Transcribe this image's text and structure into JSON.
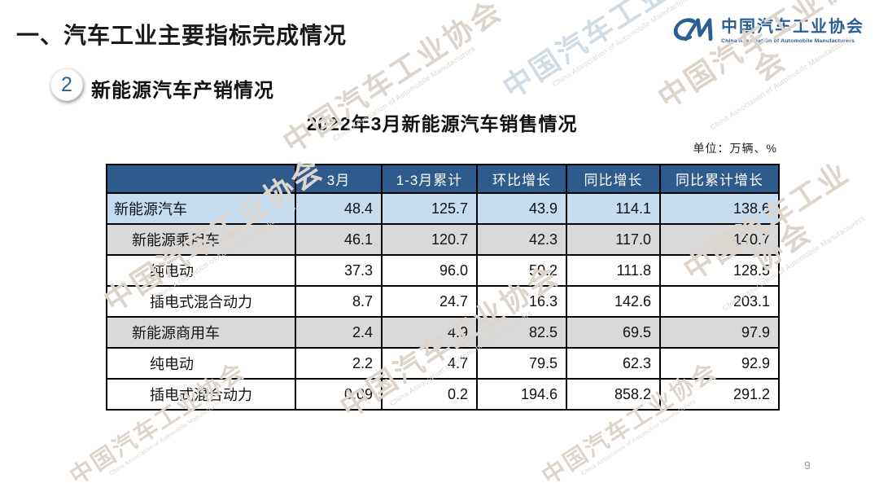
{
  "slide": {
    "title": "一、汽车工业主要指标完成情况",
    "page_number": "9"
  },
  "logo": {
    "monogram": "CM",
    "name_cn": "中国汽车工业协会",
    "name_en": "China Association of Automobile Manufacturers"
  },
  "section": {
    "badge_number": "2",
    "heading": "新能源汽车产销情况"
  },
  "table_block": {
    "title": "2022年3月新能源汽车销售情况",
    "unit_label": "单位：万辆、%"
  },
  "chart_data": {
    "type": "table",
    "columns": [
      "",
      "3月",
      "1-3月累计",
      "环比增长",
      "同比增长",
      "同比累计增长"
    ],
    "rows": [
      {
        "label": "新能源汽车",
        "indent": 0,
        "style": "blue",
        "values": [
          "48.4",
          "125.7",
          "43.9",
          "114.1",
          "138.6"
        ]
      },
      {
        "label": "新能源乘用车",
        "indent": 1,
        "style": "gray",
        "values": [
          "46.1",
          "120.7",
          "42.3",
          "117.0",
          "140.7"
        ]
      },
      {
        "label": "纯电动",
        "indent": 2,
        "style": "plain",
        "values": [
          "37.3",
          "96.0",
          "50.2",
          "111.8",
          "128.5"
        ]
      },
      {
        "label": "插电式混合动力",
        "indent": 2,
        "style": "plain",
        "values": [
          "8.7",
          "24.7",
          "16.3",
          "142.6",
          "203.1"
        ]
      },
      {
        "label": "新能源商用车",
        "indent": 1,
        "style": "gray",
        "values": [
          "2.4",
          "4.9",
          "82.5",
          "69.5",
          "97.9"
        ]
      },
      {
        "label": "纯电动",
        "indent": 2,
        "style": "plain",
        "values": [
          "2.2",
          "4.7",
          "79.5",
          "62.3",
          "92.9"
        ]
      },
      {
        "label": "插电式混合动力",
        "indent": 2,
        "style": "plain",
        "values": [
          "0.09",
          "0.2",
          "194.6",
          "858.2",
          "291.2"
        ]
      }
    ]
  },
  "watermark": {
    "text": "中国汽车工业协会",
    "subtext": "China Association of Automobile Manufacturers"
  },
  "colors": {
    "header_blue": "#2e5b8c",
    "row_light_blue": "#c5ddf1",
    "row_gray": "#d9d9d9",
    "logo_blue": "#2b5f94",
    "watermark_tan": "#ddd5cb",
    "watermark_blue": "#d2dce4"
  }
}
